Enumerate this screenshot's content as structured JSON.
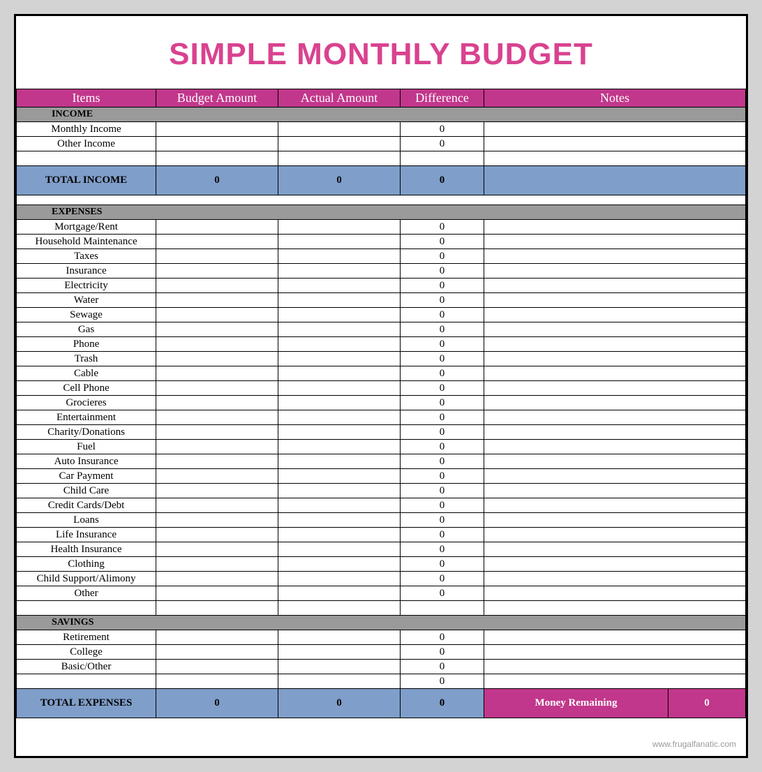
{
  "colors": {
    "page_bg": "#d3d3d3",
    "sheet_bg": "#ffffff",
    "border": "#000000",
    "title": "#d9428f",
    "header_bg": "#c1378b",
    "header_text": "#ffffff",
    "section_bg": "#9a9a9a",
    "total_bg": "#7f9ec9",
    "money_bg": "#c1378b",
    "footer_text": "#9a9a9a"
  },
  "title": "SIMPLE MONTHLY BUDGET",
  "columns": [
    "Items",
    "Budget Amount",
    "Actual Amount",
    "Difference",
    "Notes"
  ],
  "sections": [
    {
      "name": "INCOME",
      "rows": [
        {
          "label": "Monthly Income",
          "budget": "",
          "actual": "",
          "diff": "0",
          "notes": ""
        },
        {
          "label": "Other Income",
          "budget": "",
          "actual": "",
          "diff": "0",
          "notes": ""
        },
        {
          "label": "",
          "budget": "",
          "actual": "",
          "diff": "",
          "notes": ""
        }
      ],
      "total": {
        "label": "TOTAL INCOME",
        "budget": "0",
        "actual": "0",
        "diff": "0",
        "notes": ""
      }
    },
    {
      "name": "EXPENSES",
      "rows": [
        {
          "label": "Mortgage/Rent",
          "budget": "",
          "actual": "",
          "diff": "0",
          "notes": ""
        },
        {
          "label": "Household Maintenance",
          "budget": "",
          "actual": "",
          "diff": "0",
          "notes": ""
        },
        {
          "label": "Taxes",
          "budget": "",
          "actual": "",
          "diff": "0",
          "notes": ""
        },
        {
          "label": "Insurance",
          "budget": "",
          "actual": "",
          "diff": "0",
          "notes": ""
        },
        {
          "label": "Electricity",
          "budget": "",
          "actual": "",
          "diff": "0",
          "notes": ""
        },
        {
          "label": "Water",
          "budget": "",
          "actual": "",
          "diff": "0",
          "notes": ""
        },
        {
          "label": "Sewage",
          "budget": "",
          "actual": "",
          "diff": "0",
          "notes": ""
        },
        {
          "label": "Gas",
          "budget": "",
          "actual": "",
          "diff": "0",
          "notes": ""
        },
        {
          "label": "Phone",
          "budget": "",
          "actual": "",
          "diff": "0",
          "notes": ""
        },
        {
          "label": "Trash",
          "budget": "",
          "actual": "",
          "diff": "0",
          "notes": ""
        },
        {
          "label": "Cable",
          "budget": "",
          "actual": "",
          "diff": "0",
          "notes": ""
        },
        {
          "label": "Cell Phone",
          "budget": "",
          "actual": "",
          "diff": "0",
          "notes": ""
        },
        {
          "label": "Grocieres",
          "budget": "",
          "actual": "",
          "diff": "0",
          "notes": ""
        },
        {
          "label": "Entertainment",
          "budget": "",
          "actual": "",
          "diff": "0",
          "notes": ""
        },
        {
          "label": "Charity/Donations",
          "budget": "",
          "actual": "",
          "diff": "0",
          "notes": ""
        },
        {
          "label": "Fuel",
          "budget": "",
          "actual": "",
          "diff": "0",
          "notes": ""
        },
        {
          "label": "Auto Insurance",
          "budget": "",
          "actual": "",
          "diff": "0",
          "notes": ""
        },
        {
          "label": "Car Payment",
          "budget": "",
          "actual": "",
          "diff": "0",
          "notes": ""
        },
        {
          "label": "Child Care",
          "budget": "",
          "actual": "",
          "diff": "0",
          "notes": ""
        },
        {
          "label": "Credit Cards/Debt",
          "budget": "",
          "actual": "",
          "diff": "0",
          "notes": ""
        },
        {
          "label": "Loans",
          "budget": "",
          "actual": "",
          "diff": "0",
          "notes": ""
        },
        {
          "label": "Life Insurance",
          "budget": "",
          "actual": "",
          "diff": "0",
          "notes": ""
        },
        {
          "label": "Health Insurance",
          "budget": "",
          "actual": "",
          "diff": "0",
          "notes": ""
        },
        {
          "label": "Clothing",
          "budget": "",
          "actual": "",
          "diff": "0",
          "notes": ""
        },
        {
          "label": "Child Support/Alimony",
          "budget": "",
          "actual": "",
          "diff": "0",
          "notes": ""
        },
        {
          "label": "Other",
          "budget": "",
          "actual": "",
          "diff": "0",
          "notes": ""
        },
        {
          "label": "",
          "budget": "",
          "actual": "",
          "diff": "",
          "notes": ""
        }
      ]
    },
    {
      "name": "SAVINGS",
      "rows": [
        {
          "label": "Retirement",
          "budget": "",
          "actual": "",
          "diff": "0",
          "notes": ""
        },
        {
          "label": "College",
          "budget": "",
          "actual": "",
          "diff": "0",
          "notes": ""
        },
        {
          "label": "Basic/Other",
          "budget": "",
          "actual": "",
          "diff": "0",
          "notes": ""
        },
        {
          "label": "",
          "budget": "",
          "actual": "",
          "diff": "0",
          "notes": ""
        }
      ]
    }
  ],
  "grand_total": {
    "label": "TOTAL EXPENSES",
    "budget": "0",
    "actual": "0",
    "diff": "0",
    "money_label": "Money Remaining",
    "money_value": "0"
  },
  "footer": "www.frugalfanatic.com"
}
